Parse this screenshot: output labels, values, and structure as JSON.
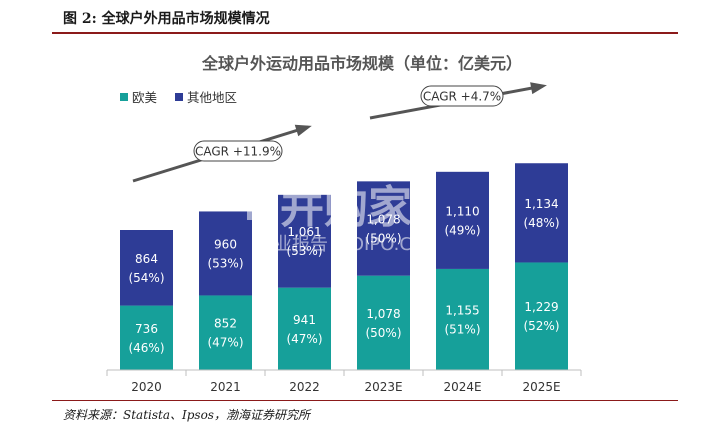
{
  "caption": "图 2:  全球户外用品市场规模情况",
  "source": "资料来源：Statista、Ipsos，渤海证券研究所",
  "watermark": {
    "main": "并购家",
    "sub": "行业报告 IPOIPO.CN"
  },
  "colors": {
    "europe_us": "#16a09a",
    "other": "#2e3c96",
    "rule": "#8b1a1a",
    "arrow": "#555555"
  },
  "annotations": [
    {
      "text": "CAGR +11.9%"
    },
    {
      "text": "CAGR +4.7%"
    }
  ],
  "chart_data": {
    "type": "bar",
    "stacked": true,
    "title": "全球户外运动用品市场规模（单位：亿美元）",
    "categories": [
      "2020",
      "2021",
      "2022",
      "2023E",
      "2024E",
      "2025E"
    ],
    "series": [
      {
        "name": "欧美",
        "values": [
          736,
          852,
          941,
          1078,
          1155,
          1229
        ],
        "labels": [
          "(46%)",
          "(47%)",
          "(47%)",
          "(50%)",
          "(51%)",
          "(52%)"
        ]
      },
      {
        "name": "其他地区",
        "values": [
          864,
          960,
          1061,
          1078,
          1110,
          1134
        ],
        "labels": [
          "(54%)",
          "(53%)",
          "(53%)",
          "(50%)",
          "(49%)",
          "(48%)"
        ]
      }
    ],
    "value_labels": [
      [
        "736",
        "852",
        "941",
        "1,078",
        "1,155",
        "1,229"
      ],
      [
        "864",
        "960",
        "1,061",
        "1,078",
        "1,110",
        "1,134"
      ]
    ],
    "ylim": [
      0,
      2400
    ],
    "legend_position": "top-left",
    "grid": false
  }
}
